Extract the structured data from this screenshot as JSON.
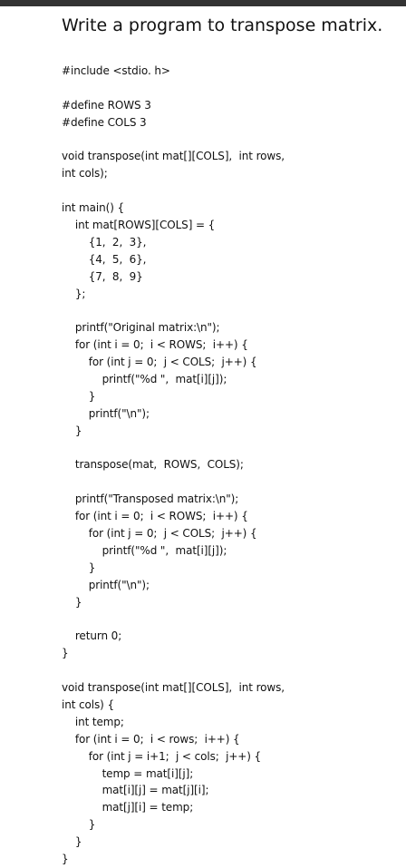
{
  "document": {
    "title": "Write a program to transpose matrix.",
    "code_lines": [
      "#include <stdio. h>",
      "",
      "#define ROWS 3",
      "#define COLS 3",
      "",
      "void transpose(int mat[][COLS],  int rows,",
      "int cols);",
      "",
      "int main() {",
      "    int mat[ROWS][COLS] = {",
      "        {1,  2,  3},",
      "        {4,  5,  6},",
      "        {7,  8,  9}",
      "    };",
      "",
      "    printf(\"Original matrix:\\n\");",
      "    for (int i = 0;  i < ROWS;  i++) {",
      "        for (int j = 0;  j < COLS;  j++) {",
      "            printf(\"%d \",  mat[i][j]);",
      "        }",
      "        printf(\"\\n\");",
      "    }",
      "",
      "    transpose(mat,  ROWS,  COLS);",
      "",
      "    printf(\"Transposed matrix:\\n\");",
      "    for (int i = 0;  i < ROWS;  i++) {",
      "        for (int j = 0;  j < COLS;  j++) {",
      "            printf(\"%d \",  mat[i][j]);",
      "        }",
      "        printf(\"\\n\");",
      "    }",
      "",
      "    return 0;",
      "}",
      "",
      "void transpose(int mat[][COLS],  int rows,",
      "int cols) {",
      "    int temp;",
      "    for (int i = 0;  i < rows;  i++) {",
      "        for (int j = i+1;  j < cols;  j++) {",
      "            temp = mat[i][j];",
      "            mat[i][j] = mat[j][i];",
      "            mat[j][i] = temp;",
      "        }",
      "    }",
      "}"
    ]
  }
}
